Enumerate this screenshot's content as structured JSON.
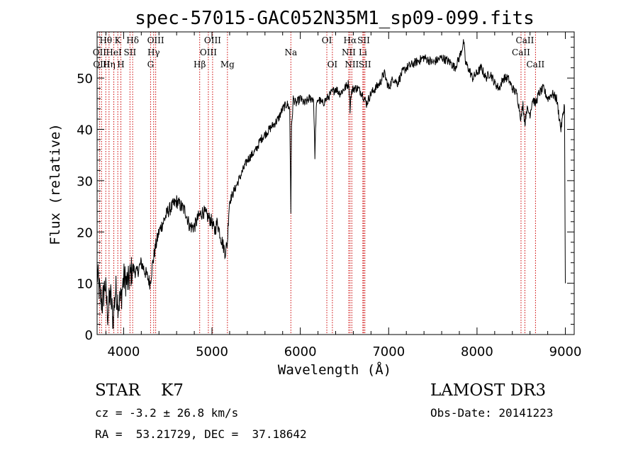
{
  "chart_data": {
    "type": "line",
    "title": "spec-57015-GAC052N35M1_sp09-099.fits",
    "xlabel": "Wavelength (Å)",
    "ylabel": "Flux (relative)",
    "xlim": [
      3700,
      9100
    ],
    "ylim": [
      0,
      59
    ],
    "xticks": [
      4000,
      5000,
      6000,
      7000,
      8000,
      9000
    ],
    "yticks": [
      0,
      10,
      20,
      30,
      40,
      50
    ],
    "grid": false,
    "series": [
      {
        "x": [
          3700,
          3730,
          3760,
          3790,
          3820,
          3850,
          3880,
          3910,
          3940,
          3970,
          4000,
          4050,
          4100,
          4150,
          4200,
          4250,
          4300,
          4330,
          4360,
          4400,
          4450,
          4500,
          4550,
          4600,
          4650,
          4700,
          4750,
          4800,
          4850,
          4900,
          4950,
          5000,
          5030,
          5060,
          5100,
          5150,
          5175,
          5190,
          5200,
          5250,
          5300,
          5350,
          5400,
          5450,
          5500,
          5550,
          5600,
          5650,
          5700,
          5750,
          5800,
          5850,
          5880,
          5893,
          5900,
          5920,
          5950,
          6000,
          6050,
          6100,
          6150,
          6165,
          6180,
          6200,
          6250,
          6300,
          6350,
          6400,
          6450,
          6500,
          6550,
          6563,
          6575,
          6600,
          6650,
          6700,
          6750,
          6800,
          6850,
          6900,
          6950,
          7000,
          7050,
          7100,
          7150,
          7200,
          7300,
          7400,
          7500,
          7600,
          7700,
          7750,
          7800,
          7850,
          7870,
          7900,
          7950,
          8000,
          8050,
          8100,
          8150,
          8200,
          8250,
          8300,
          8350,
          8400,
          8450,
          8498,
          8520,
          8542,
          8560,
          8600,
          8630,
          8662,
          8700,
          8750,
          8800,
          8850,
          8900,
          8950,
          8990,
          9000
        ],
        "y": [
          12,
          8,
          6,
          10,
          4,
          8,
          3,
          9,
          6,
          7,
          11,
          10,
          13,
          12,
          14,
          12,
          10,
          14,
          17,
          20,
          22,
          24,
          25,
          26,
          25,
          24,
          21,
          21,
          23,
          24,
          23,
          22,
          20,
          22,
          19,
          16,
          18,
          24,
          26,
          28,
          30,
          32,
          34,
          35,
          36,
          38,
          39,
          40,
          41,
          42,
          44,
          45,
          44,
          24,
          40,
          46,
          45,
          46,
          45,
          46,
          46,
          35,
          44,
          46,
          45,
          46,
          47,
          48,
          47,
          48,
          49,
          44,
          47,
          48,
          48,
          47,
          45,
          47,
          48,
          49,
          51,
          48,
          50,
          49,
          51,
          52,
          53,
          54,
          53,
          54,
          53,
          52,
          54,
          57,
          53,
          52,
          50,
          51,
          52,
          50,
          51,
          49,
          48,
          50,
          50,
          48,
          47,
          42,
          45,
          41,
          44,
          43,
          46,
          45,
          47,
          48,
          46,
          47,
          46,
          40,
          45,
          10
        ]
      }
    ],
    "spectral_lines": [
      {
        "label": "Hθ",
        "x": 3798,
        "row": 1
      },
      {
        "label": "OII",
        "x": 3727,
        "row": 2
      },
      {
        "label": "OIII",
        "x": 3750,
        "row": 3
      },
      {
        "label": "Hη",
        "x": 3835,
        "row": 3
      },
      {
        "label": "HeI",
        "x": 3889,
        "row": 2
      },
      {
        "label": "K",
        "x": 3934,
        "row": 1
      },
      {
        "label": "H",
        "x": 3969,
        "row": 3
      },
      {
        "label": "SII",
        "x": 4072,
        "row": 2
      },
      {
        "label": "Hδ",
        "x": 4102,
        "row": 1
      },
      {
        "label": "OIII",
        "x": 4363,
        "row": 1
      },
      {
        "label": "Hγ",
        "x": 4340,
        "row": 2
      },
      {
        "label": "G",
        "x": 4305,
        "row": 3
      },
      {
        "label": "Hβ",
        "x": 4861,
        "row": 3
      },
      {
        "label": "OIII",
        "x": 5007,
        "row": 1
      },
      {
        "label": "OIII",
        "x": 4959,
        "row": 2
      },
      {
        "label": "Mg",
        "x": 5175,
        "row": 3
      },
      {
        "label": "Na",
        "x": 5893,
        "row": 2
      },
      {
        "label": "OI",
        "x": 6300,
        "row": 1
      },
      {
        "label": "OI",
        "x": 6363,
        "row": 3
      },
      {
        "label": "Hα",
        "x": 6563,
        "row": 1
      },
      {
        "label": "NII",
        "x": 6548,
        "row": 2
      },
      {
        "label": "NII",
        "x": 6583,
        "row": 3
      },
      {
        "label": "SII",
        "x": 6717,
        "row": 1
      },
      {
        "label": "Li",
        "x": 6708,
        "row": 2
      },
      {
        "label": "SII",
        "x": 6731,
        "row": 3
      },
      {
        "label": "CaII",
        "x": 8542,
        "row": 1
      },
      {
        "label": "CaII",
        "x": 8498,
        "row": 2
      },
      {
        "label": "CaII",
        "x": 8662,
        "row": 3
      }
    ]
  },
  "info": {
    "class_text": "STAR    K7",
    "survey_text": "LAMOST DR3",
    "cz_text": "cz = -3.2 ± 26.8 km/s",
    "obs_date_text": "Obs-Date: 20141223",
    "coords_text": "RA =  53.21729, DEC =  37.18642"
  },
  "colors": {
    "spectrum": "#000000",
    "line_markers": "#cc0000",
    "axes": "#000000",
    "background": "#ffffff"
  }
}
